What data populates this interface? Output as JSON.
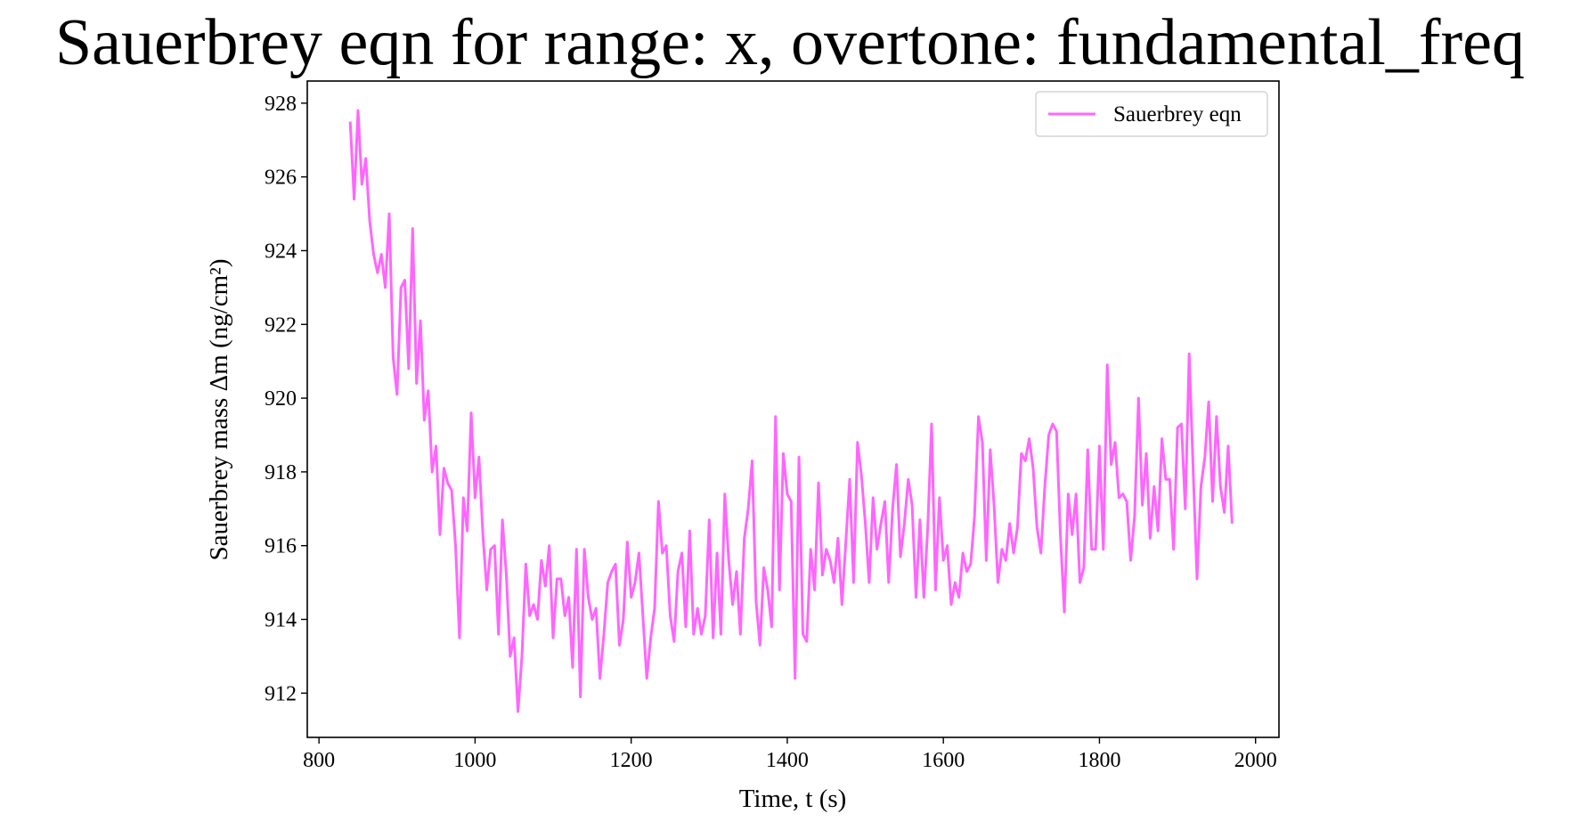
{
  "chart_data": {
    "type": "line",
    "title": "Sauerbrey eqn for range: x, overtone: fundamental_freq",
    "xlabel": "Time, t (s)",
    "ylabel": "Sauerbrey mass Δm (ng/cm²)",
    "xlim": [
      785,
      2030
    ],
    "ylim": [
      910.8,
      928.6
    ],
    "xticks": [
      800,
      1000,
      1200,
      1400,
      1600,
      1800,
      2000
    ],
    "yticks": [
      912,
      914,
      916,
      918,
      920,
      922,
      924,
      926,
      928
    ],
    "legend": {
      "position": "top-right",
      "entries": [
        "Sauerbrey eqn"
      ]
    },
    "series": [
      {
        "name": "Sauerbrey eqn",
        "color": "#ff66ff",
        "x": [
          840,
          845,
          850,
          855,
          860,
          865,
          870,
          875,
          880,
          885,
          890,
          895,
          900,
          905,
          910,
          915,
          920,
          925,
          930,
          935,
          940,
          945,
          950,
          955,
          960,
          965,
          970,
          975,
          980,
          985,
          990,
          995,
          1000,
          1005,
          1010,
          1015,
          1020,
          1025,
          1030,
          1035,
          1040,
          1045,
          1050,
          1055,
          1060,
          1065,
          1070,
          1075,
          1080,
          1085,
          1090,
          1095,
          1100,
          1105,
          1110,
          1115,
          1120,
          1125,
          1130,
          1135,
          1140,
          1145,
          1150,
          1155,
          1160,
          1165,
          1170,
          1175,
          1180,
          1185,
          1190,
          1195,
          1200,
          1205,
          1210,
          1215,
          1220,
          1225,
          1230,
          1235,
          1240,
          1245,
          1250,
          1255,
          1260,
          1265,
          1270,
          1275,
          1280,
          1285,
          1290,
          1295,
          1300,
          1305,
          1310,
          1315,
          1320,
          1325,
          1330,
          1335,
          1340,
          1345,
          1350,
          1355,
          1360,
          1365,
          1370,
          1375,
          1380,
          1385,
          1390,
          1395,
          1400,
          1405,
          1410,
          1415,
          1420,
          1425,
          1430,
          1435,
          1440,
          1445,
          1450,
          1455,
          1460,
          1465,
          1470,
          1475,
          1480,
          1485,
          1490,
          1495,
          1500,
          1505,
          1510,
          1515,
          1520,
          1525,
          1530,
          1535,
          1540,
          1545,
          1550,
          1555,
          1560,
          1565,
          1570,
          1575,
          1580,
          1585,
          1590,
          1595,
          1600,
          1605,
          1610,
          1615,
          1620,
          1625,
          1630,
          1635,
          1640,
          1645,
          1650,
          1655,
          1660,
          1665,
          1670,
          1675,
          1680,
          1685,
          1690,
          1695,
          1700,
          1705,
          1710,
          1715,
          1720,
          1725,
          1730,
          1735,
          1740,
          1745,
          1750,
          1755,
          1760,
          1765,
          1770,
          1775,
          1780,
          1785,
          1790,
          1795,
          1800,
          1805,
          1810,
          1815,
          1820,
          1825,
          1830,
          1835,
          1840,
          1845,
          1850,
          1855,
          1860,
          1865,
          1870,
          1875,
          1880,
          1885,
          1890,
          1895,
          1900,
          1905,
          1910,
          1915,
          1920,
          1925,
          1930,
          1935,
          1940,
          1945,
          1950,
          1955,
          1960,
          1965,
          1970
        ],
        "y": [
          927.5,
          925.4,
          927.8,
          925.8,
          926.5,
          924.8,
          923.9,
          923.4,
          923.9,
          923.0,
          925.0,
          921.1,
          920.1,
          923.0,
          923.2,
          920.8,
          924.6,
          920.4,
          922.1,
          919.4,
          920.2,
          918.0,
          918.7,
          916.3,
          918.1,
          917.7,
          917.5,
          916.0,
          913.5,
          917.3,
          916.4,
          919.6,
          917.3,
          918.4,
          916.3,
          914.8,
          915.9,
          916.0,
          913.6,
          916.7,
          915.2,
          913.0,
          913.5,
          911.5,
          913.0,
          915.5,
          914.1,
          914.4,
          914.0,
          915.6,
          914.9,
          916.0,
          913.5,
          915.1,
          915.1,
          914.1,
          914.6,
          912.7,
          915.9,
          911.9,
          915.9,
          914.6,
          914.0,
          914.3,
          912.4,
          913.6,
          915.0,
          915.3,
          915.5,
          913.3,
          914.0,
          916.1,
          914.6,
          915.0,
          915.8,
          914.1,
          912.4,
          913.5,
          914.3,
          917.2,
          915.8,
          916.0,
          914.1,
          913.4,
          915.3,
          915.8,
          913.8,
          916.4,
          913.6,
          914.3,
          913.6,
          914.1,
          916.7,
          913.5,
          915.8,
          913.6,
          917.4,
          915.6,
          914.4,
          915.3,
          913.6,
          916.2,
          917.0,
          918.3,
          914.5,
          913.3,
          915.4,
          914.8,
          913.8,
          919.5,
          914.8,
          918.5,
          917.4,
          917.2,
          912.4,
          918.4,
          913.6,
          913.4,
          915.9,
          914.8,
          917.7,
          915.2,
          915.9,
          915.6,
          915.0,
          916.2,
          914.4,
          916.1,
          917.8,
          915.0,
          918.8,
          917.9,
          916.6,
          915.0,
          917.3,
          915.9,
          916.6,
          917.2,
          915.0,
          917.0,
          918.2,
          915.7,
          916.6,
          917.8,
          917.1,
          914.6,
          916.7,
          914.6,
          916.5,
          919.3,
          914.8,
          917.3,
          915.6,
          916.0,
          914.4,
          915.0,
          914.6,
          915.8,
          915.3,
          915.5,
          916.8,
          919.5,
          918.8,
          915.6,
          918.6,
          917.1,
          915.0,
          915.9,
          915.6,
          916.6,
          915.8,
          916.5,
          918.5,
          918.3,
          918.9,
          918.1,
          916.5,
          915.8,
          917.6,
          919.0,
          919.3,
          919.1,
          916.3,
          914.2,
          917.4,
          916.3,
          917.4,
          915.0,
          915.4,
          918.6,
          915.9,
          915.9,
          918.7,
          915.9,
          920.9,
          918.2,
          918.8,
          917.3,
          917.4,
          917.2,
          915.6,
          916.8,
          920.0,
          917.1,
          918.5,
          916.2,
          917.6,
          916.4,
          918.9,
          917.8,
          917.8,
          915.9,
          919.2,
          919.3,
          917.0,
          921.2,
          918.1,
          915.1,
          917.6,
          918.4,
          919.9,
          917.2,
          919.5,
          917.6,
          916.9,
          918.7,
          916.6
        ]
      }
    ]
  }
}
